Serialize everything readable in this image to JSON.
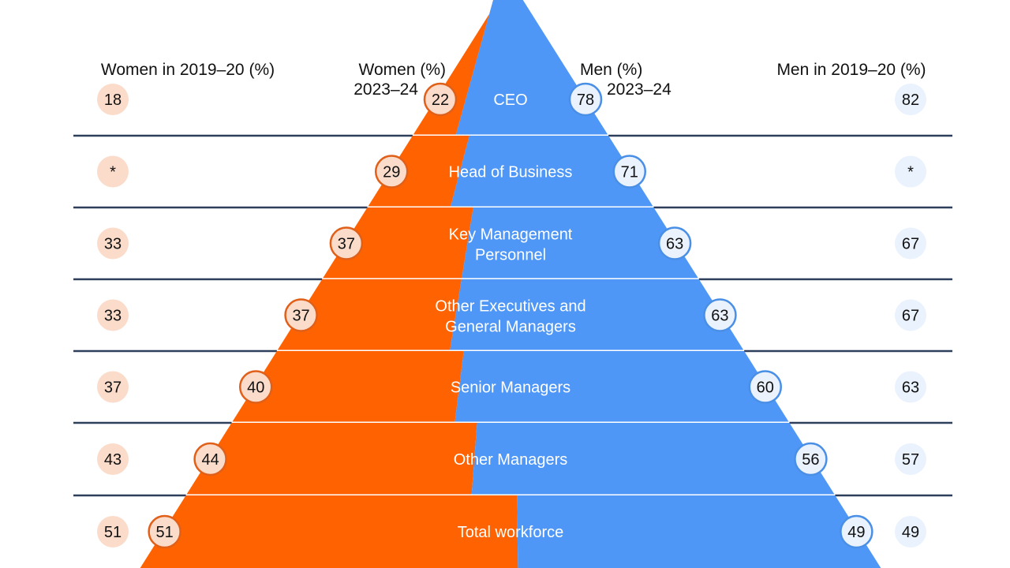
{
  "chart_data": {
    "type": "bar",
    "subtype": "pyramid",
    "headers": {
      "women_prev": "Women in 2019–20 (%)",
      "women_cur_1": "Women (%)",
      "women_cur_2": "2023–24",
      "men_cur_1": "Men (%)",
      "men_cur_2": "2023–24",
      "men_prev": "Men in 2019–20 (%)"
    },
    "categories": [
      [
        "CEO"
      ],
      [
        "Head of Business"
      ],
      [
        "Key Management",
        "Personnel"
      ],
      [
        "Other Executives and",
        "General Managers"
      ],
      [
        "Senior Managers"
      ],
      [
        "Other Managers"
      ],
      [
        "Total workforce"
      ]
    ],
    "series": [
      {
        "name": "Women (%) 2023–24",
        "values": [
          22,
          29,
          37,
          37,
          40,
          44,
          51
        ]
      },
      {
        "name": "Men (%) 2023–24",
        "values": [
          78,
          71,
          63,
          63,
          60,
          56,
          49
        ]
      },
      {
        "name": "Women in 2019–20 (%)",
        "values": [
          "18",
          "*",
          "33",
          "33",
          "37",
          "43",
          "51"
        ]
      },
      {
        "name": "Men in 2019–20 (%)",
        "values": [
          "82",
          "*",
          "67",
          "67",
          "63",
          "57",
          "49"
        ]
      }
    ],
    "colors": {
      "women": "#ff6200",
      "men": "#4f97f7",
      "women_bubble": "#fbdcca",
      "men_bubble": "#eaf2fd",
      "divider": "#2e3f5c"
    }
  }
}
